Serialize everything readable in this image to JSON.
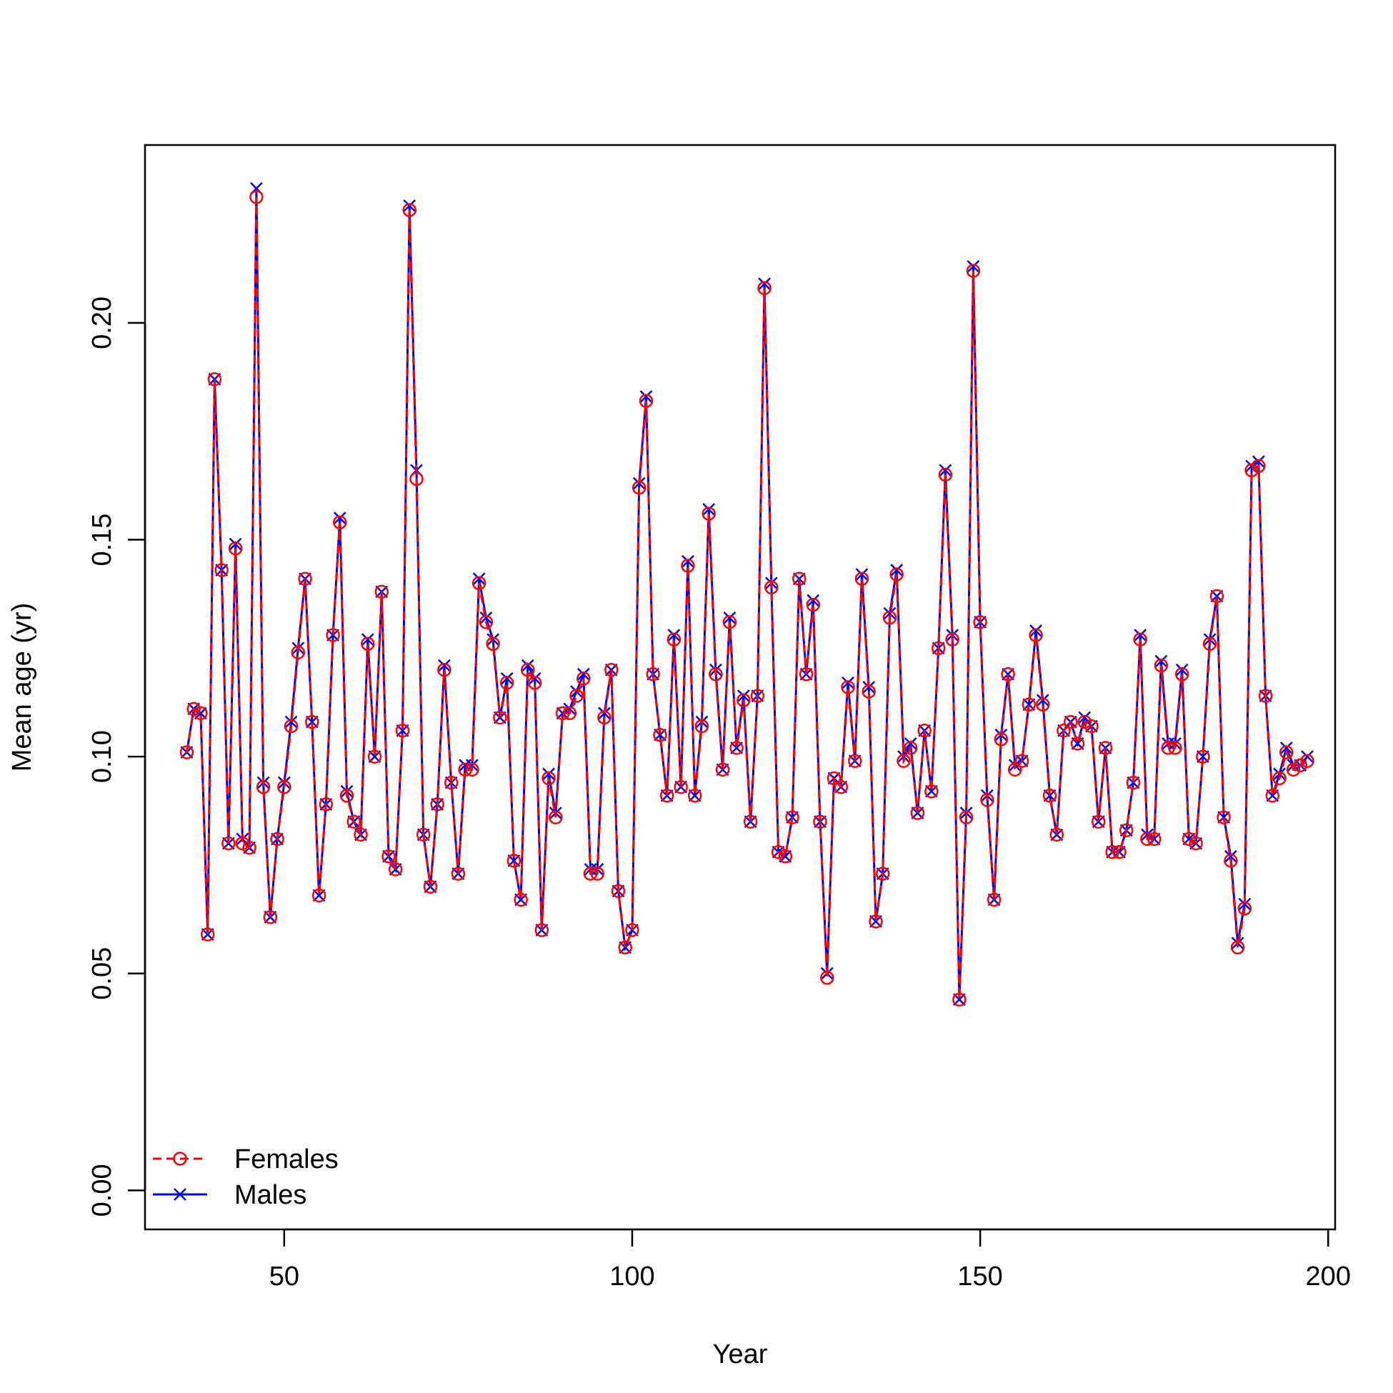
{
  "chart_data": {
    "type": "line",
    "xlabel": "Year",
    "ylabel": "Mean age (yr)",
    "xlim": [
      30,
      201
    ],
    "ylim": [
      -0.009,
      0.241
    ],
    "x_ticks": [
      50,
      100,
      150,
      200
    ],
    "y_ticks": [
      0.0,
      0.05,
      0.1,
      0.15,
      0.2
    ],
    "x_tick_labels": [
      "50",
      "100",
      "150",
      "200"
    ],
    "y_tick_labels": [
      "0.00",
      "0.05",
      "0.10",
      "0.15",
      "0.20"
    ],
    "grid": false,
    "legend_position": "bottom-left",
    "x_start": 36,
    "x_step": 1,
    "series": [
      {
        "name": "Females",
        "color": "#ff0000",
        "line_style": "dashed",
        "marker": "circle",
        "values": [
          0.101,
          0.111,
          0.11,
          0.059,
          0.187,
          0.143,
          0.08,
          0.148,
          0.08,
          0.079,
          0.229,
          0.093,
          0.063,
          0.081,
          0.093,
          0.107,
          0.124,
          0.141,
          0.108,
          0.068,
          0.089,
          0.128,
          0.154,
          0.091,
          0.085,
          0.082,
          0.126,
          0.1,
          0.138,
          0.077,
          0.074,
          0.106,
          0.226,
          0.164,
          0.082,
          0.07,
          0.089,
          0.12,
          0.094,
          0.073,
          0.097,
          0.097,
          0.14,
          0.131,
          0.126,
          0.109,
          0.117,
          0.076,
          0.067,
          0.12,
          0.117,
          0.06,
          0.095,
          0.086,
          0.11,
          0.11,
          0.114,
          0.118,
          0.073,
          0.073,
          0.109,
          0.12,
          0.069,
          0.056,
          0.06,
          0.162,
          0.182,
          0.119,
          0.105,
          0.091,
          0.127,
          0.093,
          0.144,
          0.091,
          0.107,
          0.156,
          0.119,
          0.097,
          0.131,
          0.102,
          0.113,
          0.085,
          0.114,
          0.208,
          0.139,
          0.078,
          0.077,
          0.086,
          0.141,
          0.119,
          0.135,
          0.085,
          0.049,
          0.095,
          0.093,
          0.116,
          0.099,
          0.141,
          0.115,
          0.062,
          0.073,
          0.132,
          0.142,
          0.099,
          0.102,
          0.087,
          0.106,
          0.092,
          0.125,
          0.165,
          0.127,
          0.044,
          0.086,
          0.212,
          0.131,
          0.09,
          0.067,
          0.104,
          0.119,
          0.097,
          0.099,
          0.112,
          0.128,
          0.112,
          0.091,
          0.082,
          0.106,
          0.108,
          0.103,
          0.108,
          0.107,
          0.085,
          0.102,
          0.078,
          0.078,
          0.083,
          0.094,
          0.127,
          0.081,
          0.081,
          0.121,
          0.102,
          0.102,
          0.119,
          0.081,
          0.08,
          0.1,
          0.126,
          0.137,
          0.086,
          0.076,
          0.056,
          0.065,
          0.166,
          0.167,
          0.114,
          0.091,
          0.095,
          0.101,
          0.097,
          0.098,
          0.099
        ]
      },
      {
        "name": "Males",
        "color": "#0000ff",
        "line_style": "solid",
        "marker": "cross",
        "values": [
          0.101,
          0.111,
          0.11,
          0.059,
          0.187,
          0.143,
          0.08,
          0.149,
          0.081,
          0.079,
          0.231,
          0.094,
          0.063,
          0.081,
          0.094,
          0.108,
          0.125,
          0.141,
          0.108,
          0.068,
          0.089,
          0.128,
          0.155,
          0.092,
          0.085,
          0.082,
          0.127,
          0.1,
          0.138,
          0.077,
          0.074,
          0.106,
          0.227,
          0.166,
          0.082,
          0.07,
          0.089,
          0.121,
          0.094,
          0.073,
          0.098,
          0.098,
          0.141,
          0.132,
          0.127,
          0.109,
          0.118,
          0.076,
          0.067,
          0.121,
          0.118,
          0.06,
          0.096,
          0.087,
          0.11,
          0.111,
          0.115,
          0.119,
          0.074,
          0.074,
          0.11,
          0.12,
          0.069,
          0.056,
          0.06,
          0.163,
          0.183,
          0.119,
          0.105,
          0.091,
          0.128,
          0.093,
          0.145,
          0.091,
          0.108,
          0.157,
          0.12,
          0.097,
          0.132,
          0.102,
          0.114,
          0.085,
          0.114,
          0.209,
          0.14,
          0.078,
          0.077,
          0.086,
          0.141,
          0.119,
          0.136,
          0.085,
          0.05,
          0.095,
          0.093,
          0.117,
          0.099,
          0.142,
          0.116,
          0.062,
          0.073,
          0.133,
          0.143,
          0.1,
          0.103,
          0.087,
          0.106,
          0.092,
          0.125,
          0.166,
          0.128,
          0.044,
          0.087,
          0.213,
          0.131,
          0.091,
          0.067,
          0.105,
          0.119,
          0.098,
          0.099,
          0.112,
          0.129,
          0.113,
          0.091,
          0.082,
          0.106,
          0.108,
          0.103,
          0.109,
          0.107,
          0.085,
          0.102,
          0.078,
          0.078,
          0.083,
          0.094,
          0.128,
          0.082,
          0.081,
          0.122,
          0.103,
          0.103,
          0.12,
          0.081,
          0.08,
          0.1,
          0.127,
          0.137,
          0.086,
          0.077,
          0.057,
          0.066,
          0.167,
          0.168,
          0.114,
          0.091,
          0.096,
          0.102,
          0.098,
          0.098,
          0.1
        ]
      }
    ]
  }
}
